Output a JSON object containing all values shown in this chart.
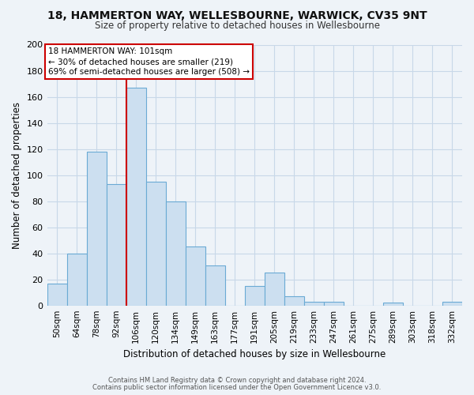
{
  "title_line1": "18, HAMMERTON WAY, WELLESBOURNE, WARWICK, CV35 9NT",
  "title_line2": "Size of property relative to detached houses in Wellesbourne",
  "xlabel": "Distribution of detached houses by size in Wellesbourne",
  "ylabel": "Number of detached properties",
  "bar_labels": [
    "50sqm",
    "64sqm",
    "78sqm",
    "92sqm",
    "106sqm",
    "120sqm",
    "134sqm",
    "149sqm",
    "163sqm",
    "177sqm",
    "191sqm",
    "205sqm",
    "219sqm",
    "233sqm",
    "247sqm",
    "261sqm",
    "275sqm",
    "289sqm",
    "303sqm",
    "318sqm",
    "332sqm"
  ],
  "bar_values": [
    17,
    40,
    118,
    93,
    167,
    95,
    80,
    45,
    31,
    0,
    15,
    25,
    7,
    3,
    3,
    0,
    0,
    2,
    0,
    0,
    3
  ],
  "bar_color": "#ccdff0",
  "bar_edge_color": "#6aaad4",
  "vline_color": "#cc0000",
  "annotation_text": "18 HAMMERTON WAY: 101sqm\n← 30% of detached houses are smaller (219)\n69% of semi-detached houses are larger (508) →",
  "annotation_box_color": "#ffffff",
  "annotation_box_edge_color": "#cc0000",
  "ylim": [
    0,
    200
  ],
  "yticks": [
    0,
    20,
    40,
    60,
    80,
    100,
    120,
    140,
    160,
    180,
    200
  ],
  "grid_color": "#c8d8e8",
  "footer_line1": "Contains HM Land Registry data © Crown copyright and database right 2024.",
  "footer_line2": "Contains public sector information licensed under the Open Government Licence v3.0.",
  "background_color": "#eef3f8"
}
